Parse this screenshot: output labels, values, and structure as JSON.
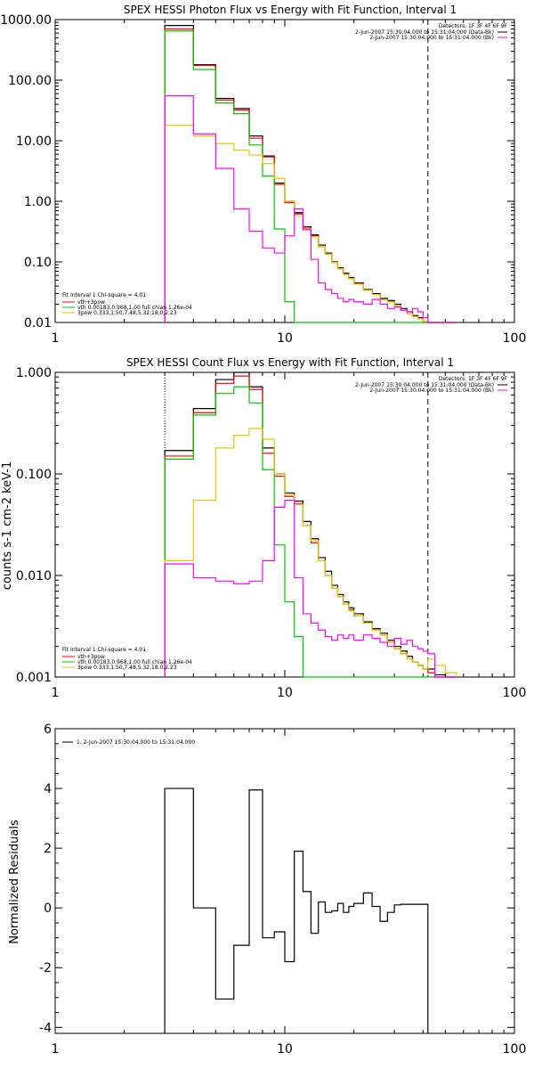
{
  "chart_data": [
    {
      "type": "line",
      "title": "SPEX HESSI Photon Flux vs Energy with Fit Function, Interval 1",
      "xscale": "log",
      "yscale": "log",
      "xlim": [
        1,
        100
      ],
      "ylim": [
        0.01,
        1000
      ],
      "x_ticks": [
        "1",
        "10",
        "100"
      ],
      "x_tick_values": [
        1,
        10,
        100
      ],
      "y_ticks": [
        "0.01",
        "0.10",
        "1.00",
        "10.00",
        "100.00",
        "1000.00"
      ],
      "y_tick_values": [
        0.01,
        0.1,
        1,
        10,
        100,
        1000
      ],
      "vlines": [
        {
          "x": 3,
          "style": "dotted",
          "color": "#000000"
        },
        {
          "x": 42,
          "style": "dashed",
          "color": "#000000"
        }
      ],
      "legend_top_right": {
        "detectors": "Detectors: 1F 3F 4F 6F 9F",
        "entries": [
          {
            "label": "2-Jun-2007 15:30:04.000 to 15:31:04.000 (Data-Bk)",
            "color": "#000000"
          },
          {
            "label": "2-Jun-2007 15:30:04.000 to 15:31:04.000 (Bk)",
            "color": "#ff00ff"
          }
        ]
      },
      "legend_bottom_left": {
        "header": "Fit Interval 1   Chi-square = 4.01",
        "entries": [
          {
            "label": "vth+3pow",
            "color": "#ff0000"
          },
          {
            "label": "vth 0.00183,0.968,1.00  full chian 1.26e-04",
            "color": "#00c800"
          },
          {
            "label": "3pow 0.333,1.50,7.48,5.32,18.0,2.23",
            "color": "#e6c800"
          }
        ]
      },
      "edges": [
        3,
        4,
        5,
        6,
        7,
        8,
        9,
        10,
        11,
        12,
        13,
        14,
        15,
        16,
        17,
        18,
        19,
        20,
        22,
        24,
        26,
        28,
        30,
        32,
        34,
        36,
        38,
        40,
        42,
        45,
        50,
        56
      ],
      "series": [
        {
          "color": "#000000",
          "values": [
            800,
            180,
            50,
            34,
            12,
            5.6,
            2.0,
            1.0,
            0.65,
            0.38,
            0.28,
            0.19,
            0.14,
            0.1,
            0.08,
            0.065,
            0.055,
            0.045,
            0.035,
            0.03,
            0.025,
            0.023,
            0.02,
            0.017,
            0.015,
            0.013,
            0.012,
            0.0105,
            0.0095,
            0.009,
            0.009
          ]
        },
        {
          "color": "#ff0000",
          "values": [
            700,
            175,
            47,
            32,
            11,
            5.4,
            1.9,
            0.95,
            0.62,
            0.36,
            0.27,
            0.18,
            0.135,
            0.098,
            0.078,
            0.063,
            0.053,
            0.044,
            0.034,
            0.029,
            0.024,
            0.022,
            0.019,
            0.016,
            0.014,
            0.0125,
            0.0115,
            0.01,
            0.009,
            0.009,
            0.009
          ]
        },
        {
          "color": "#00c800",
          "values": [
            650,
            150,
            42,
            28,
            8.5,
            2.6,
            0.35,
            0.022,
            0.009,
            0.009,
            0.009,
            0.009,
            0.009,
            0.009,
            0.009,
            0.009,
            0.009,
            0.009,
            0.009,
            0.009,
            0.009,
            0.009,
            0.009,
            0.009,
            0.009,
            0.009,
            0.009,
            0.009,
            0.009,
            0.009,
            0.009
          ]
        },
        {
          "color": "#e6c800",
          "values": [
            18,
            12,
            9,
            7,
            5.8,
            4.2,
            2.4,
            1.0,
            0.58,
            0.35,
            0.26,
            0.18,
            0.135,
            0.098,
            0.077,
            0.062,
            0.053,
            0.043,
            0.034,
            0.029,
            0.024,
            0.022,
            0.019,
            0.016,
            0.014,
            0.0125,
            0.0115,
            0.0105,
            0.01,
            0.009,
            0.009
          ]
        },
        {
          "color": "#ff00ff",
          "values": [
            55,
            13,
            3.5,
            0.75,
            0.32,
            0.17,
            0.14,
            0.27,
            0.75,
            0.34,
            0.11,
            0.045,
            0.035,
            0.03,
            0.025,
            0.022,
            0.024,
            0.022,
            0.02,
            0.024,
            0.02,
            0.017,
            0.018,
            0.016,
            0.015,
            0.017,
            0.015,
            0.012,
            0.009,
            0.009,
            0.009
          ]
        }
      ]
    },
    {
      "type": "line",
      "title": "SPEX HESSI Count Flux vs Energy with Fit Function, Interval 1",
      "ylabel": "counts s-1 cm-2 keV-1",
      "xscale": "log",
      "yscale": "log",
      "xlim": [
        1,
        100
      ],
      "ylim": [
        0.001,
        1.0
      ],
      "x_ticks": [
        "1",
        "10",
        "100"
      ],
      "x_tick_values": [
        1,
        10,
        100
      ],
      "y_ticks": [
        "0.001",
        "0.010",
        "0.100",
        "1.000"
      ],
      "y_tick_values": [
        0.001,
        0.01,
        0.1,
        1
      ],
      "vlines": [
        {
          "x": 3,
          "style": "dotted",
          "color": "#000000"
        },
        {
          "x": 42,
          "style": "dashed",
          "color": "#000000"
        }
      ],
      "legend_top_right": {
        "detectors": "Detectors: 1F 3F 4F 6F 9F",
        "entries": [
          {
            "label": "2-Jun-2007 15:30:04.000 to 15:31:04.000 (Data-Bk)",
            "color": "#000000"
          },
          {
            "label": "2-Jun-2007 15:30:04.000 to 15:31:04.000 (Bk)",
            "color": "#ff00ff"
          }
        ]
      },
      "legend_bottom_left": {
        "header": "Fit Interval 1   Chi-square = 4.01",
        "entries": [
          {
            "label": "vth+3pow",
            "color": "#ff0000"
          },
          {
            "label": "vth 0.00183,0.968,1.00  full chian 1.26e-04",
            "color": "#00c800"
          },
          {
            "label": "3pow 0.333,1.50,7.48,5.32,18.0,2.23",
            "color": "#e6c800"
          }
        ]
      },
      "edges": [
        3,
        4,
        5,
        6,
        7,
        8,
        9,
        10,
        11,
        12,
        13,
        14,
        15,
        16,
        17,
        18,
        19,
        20,
        22,
        24,
        26,
        28,
        30,
        32,
        34,
        36,
        38,
        40,
        42,
        45,
        50,
        56
      ],
      "series": [
        {
          "color": "#000000",
          "values": [
            0.17,
            0.44,
            0.85,
            1.0,
            0.72,
            0.18,
            0.1,
            0.065,
            0.054,
            0.034,
            0.023,
            0.015,
            0.011,
            0.008,
            0.0065,
            0.0055,
            0.0048,
            0.0042,
            0.0035,
            0.003,
            0.0027,
            0.0023,
            0.002,
            0.0018,
            0.0016,
            0.0014,
            0.0013,
            0.0012,
            0.0012,
            0.00105,
            0.00095
          ]
        },
        {
          "color": "#ff0000",
          "values": [
            0.15,
            0.4,
            0.78,
            0.92,
            0.68,
            0.16,
            0.095,
            0.06,
            0.051,
            0.031,
            0.021,
            0.014,
            0.01,
            0.0075,
            0.0062,
            0.0052,
            0.0046,
            0.004,
            0.0034,
            0.0029,
            0.0026,
            0.0022,
            0.0019,
            0.0017,
            0.0015,
            0.0014,
            0.0013,
            0.0012,
            0.0011,
            0.001,
            0.00095
          ]
        },
        {
          "color": "#00c800",
          "values": [
            0.14,
            0.38,
            0.62,
            0.72,
            0.5,
            0.11,
            0.02,
            0.0055,
            0.0025,
            0.0009,
            0.0009,
            0.0009,
            0.0009,
            0.0009,
            0.0009,
            0.0009,
            0.0009,
            0.0009,
            0.0009,
            0.0009,
            0.0009,
            0.0009,
            0.0009,
            0.0009,
            0.0009,
            0.0009,
            0.0009,
            0.0009,
            0.0009,
            0.0009,
            0.0009
          ]
        },
        {
          "color": "#e6c800",
          "values": [
            0.014,
            0.055,
            0.18,
            0.24,
            0.28,
            0.22,
            0.1,
            0.062,
            0.05,
            0.031,
            0.022,
            0.014,
            0.01,
            0.0075,
            0.0062,
            0.0052,
            0.0045,
            0.004,
            0.0034,
            0.0029,
            0.0026,
            0.0022,
            0.0019,
            0.0017,
            0.0015,
            0.0014,
            0.0013,
            0.0012,
            0.0015,
            0.0013,
            0.0011
          ]
        },
        {
          "color": "#ff00ff",
          "values": [
            0.013,
            0.0095,
            0.0088,
            0.0083,
            0.0088,
            0.014,
            0.047,
            0.055,
            0.0095,
            0.0042,
            0.0034,
            0.0029,
            0.0025,
            0.0023,
            0.0026,
            0.0024,
            0.0026,
            0.0023,
            0.0026,
            0.0024,
            0.0022,
            0.002,
            0.0024,
            0.0021,
            0.0023,
            0.002,
            0.0019,
            0.0018,
            0.0017,
            0.0009,
            0.0009
          ]
        }
      ]
    },
    {
      "type": "line",
      "title": "",
      "ylabel": "Normalized Residuals",
      "xscale": "log",
      "yscale": "linear",
      "xlim": [
        1,
        100
      ],
      "ylim": [
        -4.2,
        6
      ],
      "x_ticks": [
        "1",
        "10",
        "100"
      ],
      "x_tick_values": [
        1,
        10,
        100
      ],
      "y_ticks": [
        "-4",
        "-2",
        "0",
        "2",
        "4",
        "6"
      ],
      "y_tick_values": [
        -4,
        -2,
        0,
        2,
        4,
        6
      ],
      "legend": {
        "entries": [
          {
            "label": "1. 2-Jun-2007 15:30:04.000 to 15:31:04.000",
            "color": "#000000"
          }
        ]
      },
      "edges": [
        3,
        4,
        5,
        6,
        7,
        8,
        9,
        10,
        11,
        12,
        13,
        14,
        15,
        16,
        17,
        18,
        19,
        20,
        22,
        24,
        26,
        28,
        30,
        32,
        34,
        36,
        38,
        40,
        42
      ],
      "series": [
        {
          "color": "#000000",
          "values": [
            4.0,
            0.0,
            -3.05,
            -1.25,
            3.95,
            -1.0,
            -0.8,
            -1.8,
            1.9,
            0.55,
            -0.85,
            0.2,
            -0.15,
            -0.1,
            0.15,
            -0.15,
            0.05,
            0.15,
            0.5,
            0.05,
            -0.45,
            -0.15,
            0.1,
            0.12,
            0.12,
            0.12,
            0.12,
            0.12
          ]
        }
      ]
    }
  ]
}
